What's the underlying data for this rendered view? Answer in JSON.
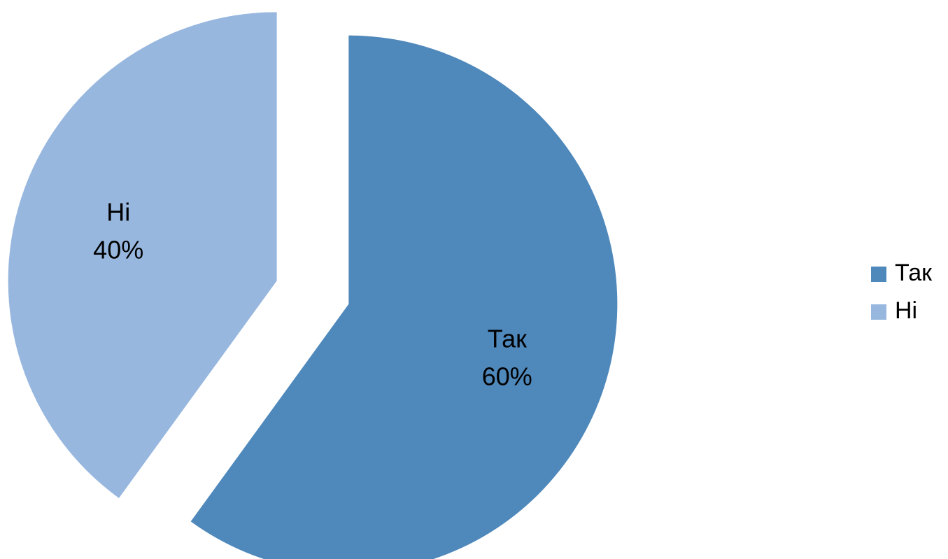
{
  "chart_data": {
    "type": "pie",
    "categories": [
      "Так",
      "Ні"
    ],
    "values": [
      60,
      40
    ],
    "labels": [
      "60%",
      "40%"
    ],
    "colors": [
      "#4F88BB",
      "#97B7DF"
    ],
    "exploded": true,
    "legend": "right",
    "title": ""
  }
}
